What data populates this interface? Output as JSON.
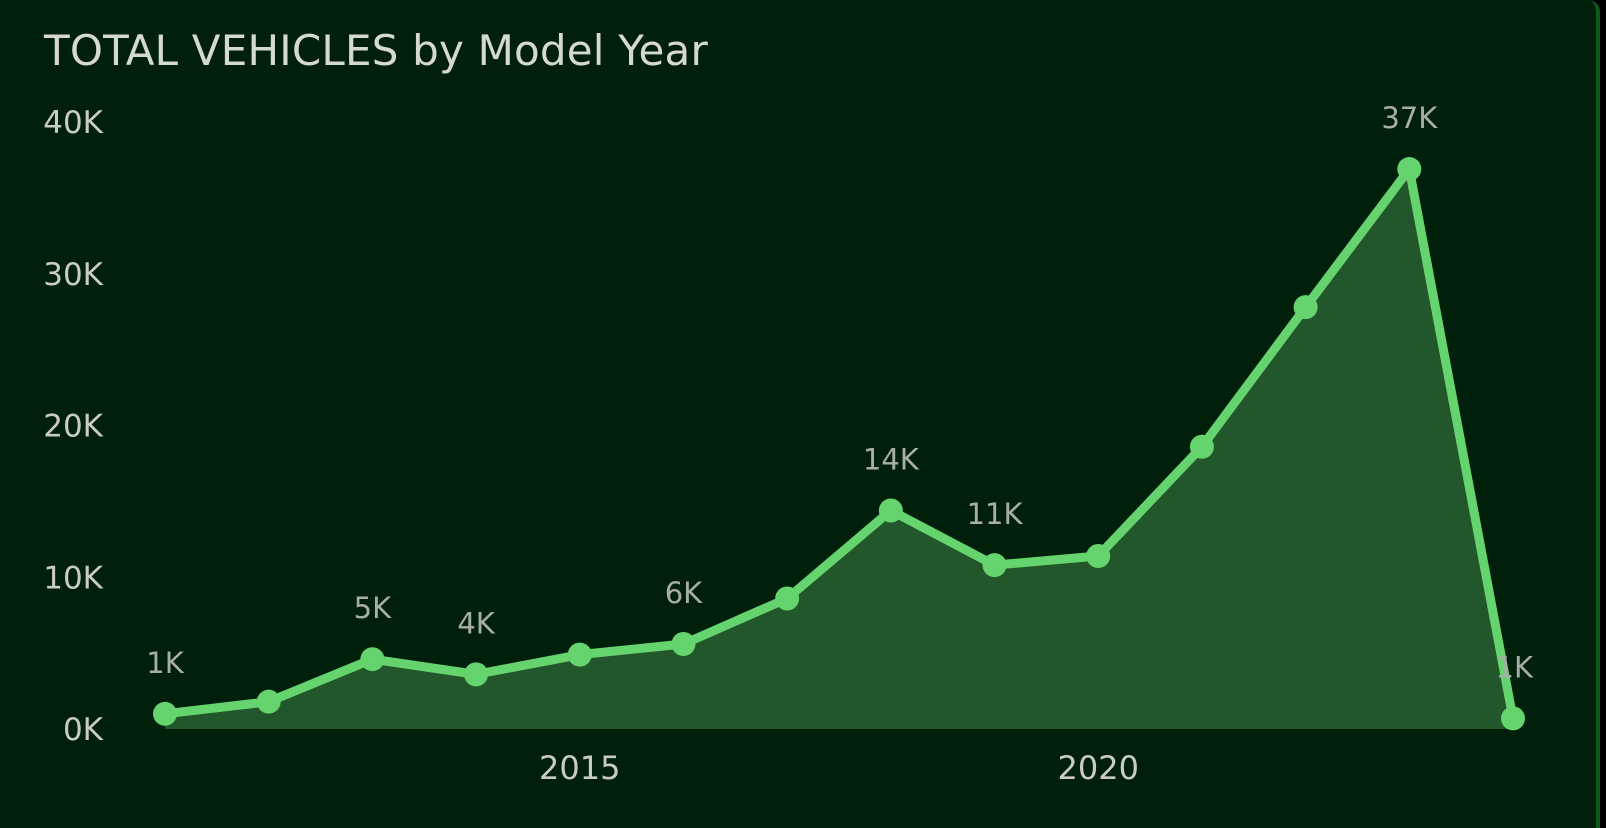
{
  "chart_data": {
    "type": "area",
    "title": "TOTAL VEHICLES by Model Year",
    "xlabel": "",
    "ylabel": "",
    "x": [
      2011,
      2012,
      2013,
      2014,
      2015,
      2016,
      2017,
      2018,
      2019,
      2020,
      2021,
      2022,
      2023,
      2024
    ],
    "values": [
      1000,
      1800,
      4600,
      3600,
      4900,
      5600,
      8600,
      14400,
      10800,
      11400,
      18600,
      27800,
      36900,
      700
    ],
    "data_labels": [
      "1K",
      "",
      "5K",
      "4K",
      "",
      "6K",
      "",
      "14K",
      "11K",
      "",
      "",
      "",
      "37K",
      "1K"
    ],
    "ylim": [
      0,
      40000
    ],
    "yticks": [
      0,
      10000,
      20000,
      30000,
      40000
    ],
    "ytick_labels": [
      "0K",
      "10K",
      "20K",
      "30K",
      "40K"
    ],
    "xticks": [
      2015,
      2020
    ],
    "xtick_labels": [
      "2015",
      "2020"
    ],
    "grid": false,
    "legend": "none",
    "colors": {
      "background": "#00200b",
      "line": "#66d46e",
      "fill": "#21572a",
      "axis_text": "#c8cbc6",
      "data_label_text": "#a9ada7",
      "title_text": "#d6d8d3"
    }
  }
}
